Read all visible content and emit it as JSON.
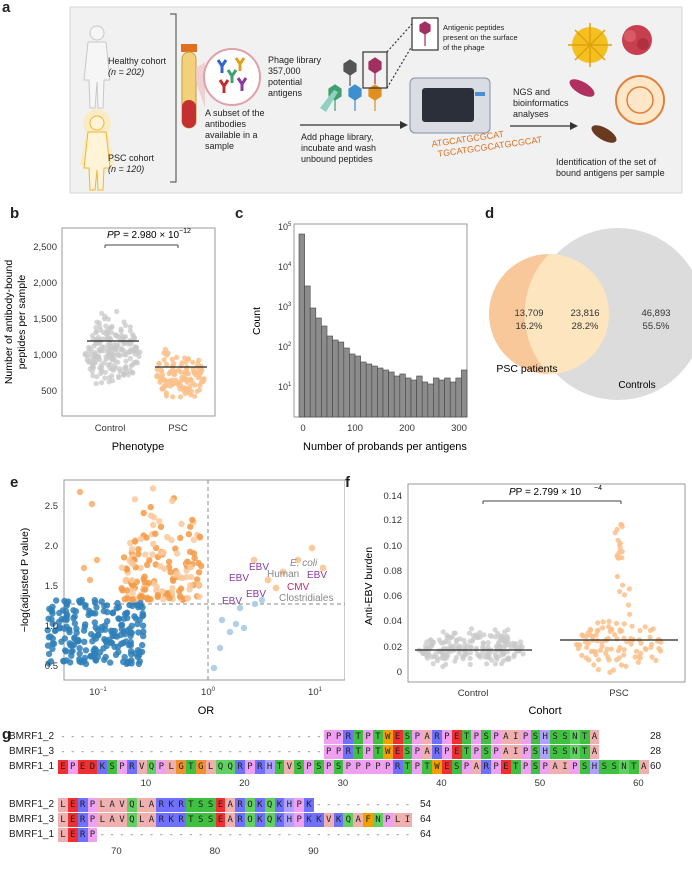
{
  "panels": {
    "a": "a",
    "b": "b",
    "c": "c",
    "d": "d",
    "e": "e",
    "f": "f",
    "g": "g"
  },
  "panel_a": {
    "healthy_line1": "Healthy cohort",
    "healthy_line2": "(n = 202)",
    "psc_line1": "PSC cohort",
    "psc_line2": "(n = 120)",
    "subset_lines": [
      "A subset of the",
      "antibodies",
      "available in a",
      "sample"
    ],
    "phage_lines": [
      "Phage library",
      "357,000",
      "potential",
      "antigens"
    ],
    "antigenic_lines": [
      "Antigenic peptides",
      "present on the surface",
      "of the phage"
    ],
    "add_lines": [
      "Add phage library,",
      "incubate and wash",
      "unbound peptides"
    ],
    "ngs_lines": [
      "NGS and",
      "bioinformatics",
      "analyses"
    ],
    "ident_lines": [
      "Identification of the set of",
      "bound antigens per sample"
    ],
    "dna_text": "ATGCATGCGCAT"
  },
  "panel_b": {
    "pvalue": "P = 2.980 × 10",
    "pexp": "−12",
    "ylabel1": "Number of antibody-bound",
    "ylabel2": "peptides per sample",
    "xlabel": "Phenotype",
    "yticks": [
      "2,500",
      "2,000",
      "1,500",
      "1,000",
      "500"
    ],
    "xticks": [
      "Control",
      "PSC"
    ]
  },
  "panel_c": {
    "ylabel": "Count",
    "xlabel": "Number of probands per antigens",
    "xticks": [
      "0",
      "100",
      "200",
      "300"
    ]
  },
  "panel_d": {
    "left_count": "13,709",
    "left_pct": "16.2%",
    "mid_count": "23,816",
    "mid_pct": "28.2%",
    "right_count": "46,893",
    "right_pct": "55.5%",
    "left_label": "PSC patients",
    "right_label": "Controls"
  },
  "panel_e": {
    "ylabel": "−log(adjusted P value)",
    "xlabel": "OR",
    "yticks": [
      "2.5",
      "2.0",
      "1.5",
      "1.0",
      "0.5"
    ],
    "annotations": [
      "EBV",
      "E. coli",
      "Human",
      "EBV",
      "EBV",
      "CMV",
      "EBV",
      "Clostridiales",
      "EBV"
    ]
  },
  "panel_f": {
    "pvalue": "P = 2.799 × 10",
    "pexp": "−4",
    "ylabel": "Anti-EBV burden",
    "xlabel": "Cohort",
    "yticks": [
      "0.14",
      "0.12",
      "0.10",
      "0.08",
      "0.06",
      "0.04",
      "0.02",
      "0"
    ],
    "xticks": [
      "Control",
      "PSC"
    ]
  },
  "panel_g": {
    "block1": {
      "rows": [
        {
          "name": "BMRF1_2",
          "seq": "---------------------------PPRTPTWESPARPETPSPAIPSHSSNTA",
          "count": "28"
        },
        {
          "name": "BMRF1_3",
          "seq": "---------------------------PPRTPTWESPARPETPSPAIPSHSSNTA",
          "count": "28"
        },
        {
          "name": "BMRF1_1",
          "seq": "EPEDKSPRVQPLGTGLQQRPRHTVSPSPSPPPPPRTPTWESPARPETPSPAIPSHSSNTA",
          "count": "60"
        }
      ],
      "ticks": [
        "10",
        "20",
        "30",
        "40",
        "50",
        "60"
      ]
    },
    "block2": {
      "rows": [
        {
          "name": "BMRF1_2",
          "seq": "LERPLAVQLARKRTSSEAROKQKHPK----------",
          "count": "54"
        },
        {
          "name": "BMRF1_3",
          "seq": "LERPLAVQLARKRTSSEAROKQKHPKKVKQAFNPLI",
          "count": "64"
        },
        {
          "name": "BMRF1_1",
          "seq": "LERP--------------------------------",
          "count": "64"
        }
      ],
      "ticks": [
        "70",
        "80",
        "90"
      ]
    },
    "colors": {
      "P": "#f0a0f0",
      "R": "#7070ff",
      "K": "#7070ff",
      "H": "#b0a0ff",
      "D": "#f03030",
      "E": "#f03030",
      "T": "#40c040",
      "S": "#40c040",
      "Q": "#60d060",
      "N": "#60d060",
      "A": "#f0b0b0",
      "V": "#f0b0b0",
      "L": "#f0b0b0",
      "I": "#f0b0b0",
      "G": "#f09030",
      "W": "#f0a000",
      "F": "#f0a000",
      "Y": "#f0a000",
      "O": "#60d060",
      "C": "#f0f060"
    }
  }
}
